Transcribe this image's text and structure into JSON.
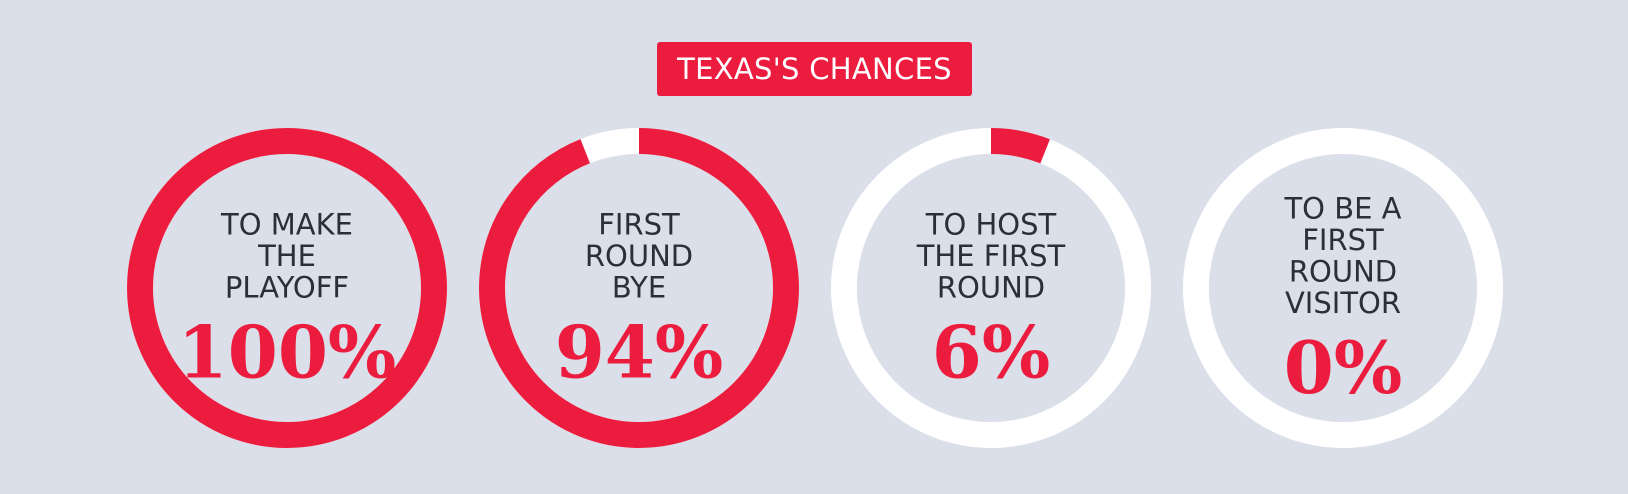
{
  "title": "TEXAS'S CHANCES",
  "colors": {
    "background": "#dbdfe9",
    "accent": "#ec1c3e",
    "track": "#ffffff",
    "label": "#2b2f38"
  },
  "chart_data": {
    "type": "pie",
    "title": "TEXAS'S CHANCES",
    "series": [
      {
        "label_lines": [
          "TO MAKE",
          "THE",
          "PLAYOFF"
        ],
        "value": 100,
        "display": "100%"
      },
      {
        "label_lines": [
          "FIRST",
          "ROUND",
          "BYE"
        ],
        "value": 94,
        "display": "94%"
      },
      {
        "label_lines": [
          "TO HOST",
          "THE FIRST",
          "ROUND"
        ],
        "value": 6,
        "display": "6%"
      },
      {
        "label_lines": [
          "TO BE A",
          "FIRST",
          "ROUND",
          "VISITOR"
        ],
        "value": 0,
        "display": "0%"
      }
    ]
  }
}
